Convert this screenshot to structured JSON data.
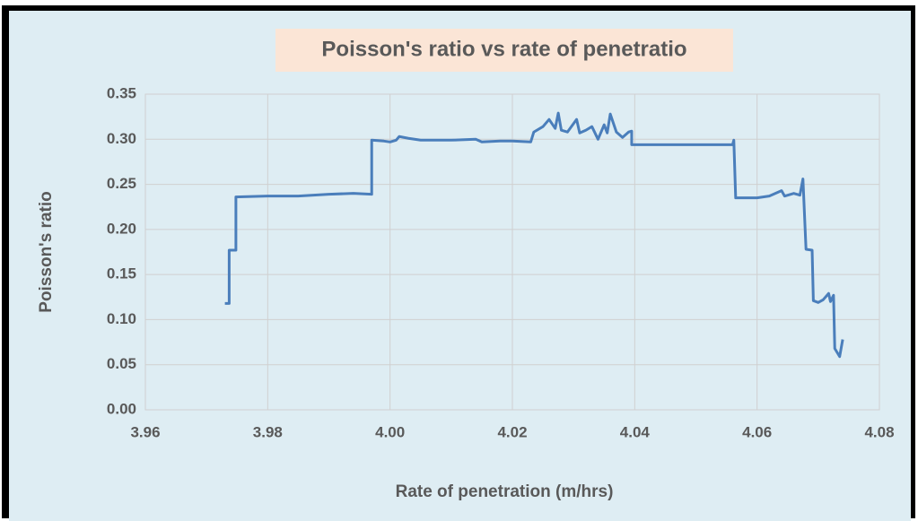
{
  "chart_data": {
    "type": "line",
    "title": "Poisson's ratio vs rate of penetratio",
    "x_label": "Rate of penetration (m/hrs)",
    "y_label": "Poisson's ratio",
    "color": "#4a7ebb",
    "grid": true,
    "xlim": [
      3.96,
      4.08
    ],
    "ylim": [
      0,
      0.35
    ],
    "xticks": [
      3.96,
      3.98,
      {
        "value": 4,
        "label": "4.00"
      },
      4.02,
      4.04,
      4.06,
      4.08
    ],
    "yticks": [
      {
        "value": 0,
        "label": "0.00"
      },
      0.05,
      {
        "value": 0.1,
        "label": "0.10"
      },
      0.15,
      {
        "value": 0.2,
        "label": "0.20"
      },
      0.25,
      {
        "value": 0.3,
        "label": "0.30"
      },
      0.35
    ],
    "x": [
      3.973,
      3.9737,
      3.9737,
      3.9748,
      3.9748,
      3.98,
      3.985,
      3.99,
      3.994,
      3.997,
      3.997,
      3.999,
      4.0,
      4.001,
      4.0015,
      4.003,
      4.005,
      4.01,
      4.014,
      4.015,
      4.018,
      4.02,
      4.023,
      4.0235,
      4.025,
      4.026,
      4.027,
      4.0275,
      4.028,
      4.029,
      4.0305,
      4.031,
      4.032,
      4.033,
      4.034,
      4.035,
      4.0355,
      4.036,
      4.037,
      4.038,
      4.039,
      4.0395,
      4.0395,
      4.045,
      4.05,
      4.056,
      4.0562,
      4.0565,
      4.06,
      4.062,
      4.064,
      4.0645,
      4.066,
      4.067,
      4.0675,
      4.068,
      4.069,
      4.0692,
      4.07,
      4.0708,
      4.0717,
      4.072,
      4.0725,
      4.0727,
      4.0735,
      4.074
    ],
    "values": [
      0.118,
      0.118,
      0.177,
      0.177,
      0.236,
      0.237,
      0.237,
      0.239,
      0.24,
      0.239,
      0.299,
      0.298,
      0.297,
      0.299,
      0.303,
      0.301,
      0.299,
      0.299,
      0.3,
      0.297,
      0.298,
      0.298,
      0.297,
      0.308,
      0.314,
      0.322,
      0.312,
      0.329,
      0.31,
      0.308,
      0.322,
      0.307,
      0.31,
      0.314,
      0.3,
      0.316,
      0.307,
      0.328,
      0.308,
      0.302,
      0.308,
      0.309,
      0.294,
      0.294,
      0.294,
      0.294,
      0.299,
      0.235,
      0.235,
      0.237,
      0.243,
      0.237,
      0.24,
      0.238,
      0.256,
      0.178,
      0.177,
      0.121,
      0.119,
      0.122,
      0.129,
      0.12,
      0.127,
      0.068,
      0.059,
      0.078
    ]
  }
}
